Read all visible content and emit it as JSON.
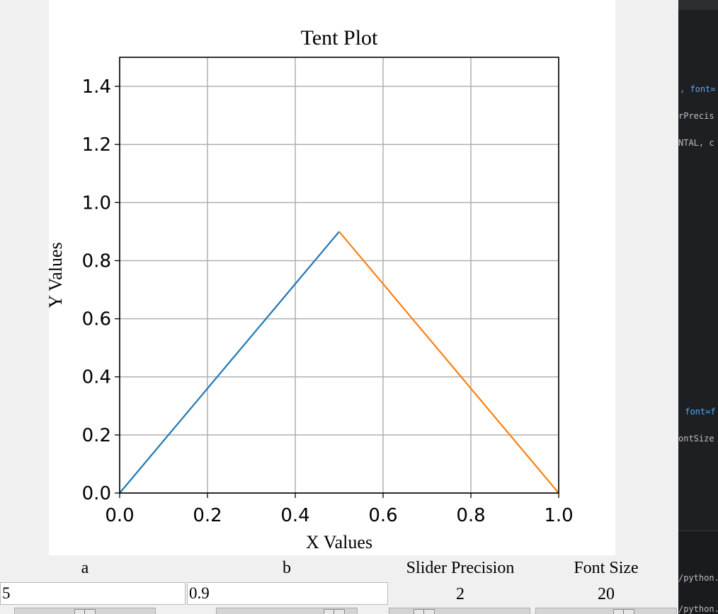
{
  "chart_data": {
    "type": "line",
    "title": "Tent Plot",
    "xlabel": "X Values",
    "ylabel": "Y Values",
    "xlim": [
      0.0,
      1.0
    ],
    "ylim": [
      0.0,
      1.5
    ],
    "x_ticks": [
      "0.0",
      "0.2",
      "0.4",
      "0.6",
      "0.8",
      "1.0"
    ],
    "y_ticks": [
      "0.0",
      "0.2",
      "0.4",
      "0.6",
      "0.8",
      "1.0",
      "1.2",
      "1.4"
    ],
    "grid": true,
    "series": [
      {
        "color": "#1f77b4",
        "x": [
          0.0,
          0.5
        ],
        "y": [
          0.0,
          0.9
        ]
      },
      {
        "color": "#ff7f0e",
        "x": [
          0.5,
          1.0
        ],
        "y": [
          0.9,
          0.0
        ]
      }
    ]
  },
  "controls": {
    "a": {
      "label": "a",
      "value": "5",
      "scale_fraction": 0.5
    },
    "b": {
      "label": "b",
      "value": "0.9",
      "scale_fraction": 0.9
    },
    "precision": {
      "label": "Slider Precision",
      "value": "2",
      "scale_fraction": 0.2
    },
    "font_size": {
      "label": "Font Size",
      "value": "20",
      "scale_fraction": 0.65
    }
  },
  "editor": {
    "lines": [
      {
        "text": ", font=",
        "color": "#56a8f5"
      },
      {
        "text": "rPrecis",
        "color": "#bcbec4"
      },
      {
        "text": "NTAL, c",
        "color": "#bcbec4"
      },
      {
        "text": " font=f",
        "color": "#56a8f5"
      },
      {
        "text": "ontSize",
        "color": "#bcbec4"
      },
      {
        "text": "/python.",
        "color": "#bcbec4"
      },
      {
        "text": "/python.",
        "color": "#bcbec4"
      }
    ]
  }
}
